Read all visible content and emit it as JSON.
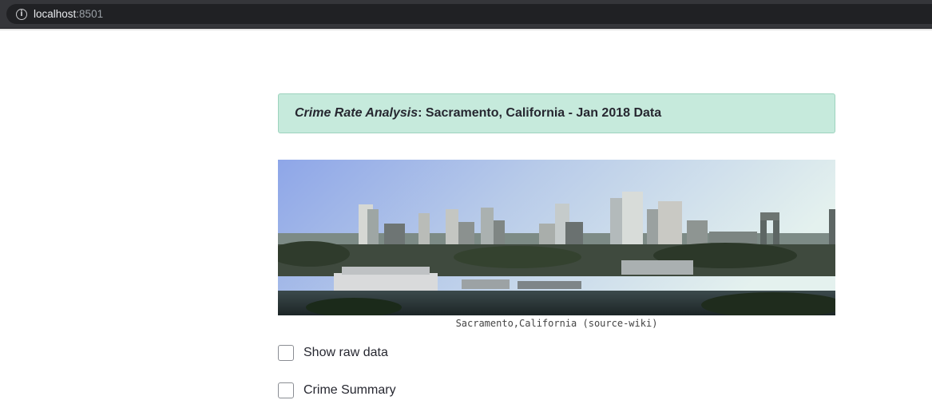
{
  "browser": {
    "url_host": "localhost",
    "url_port": ":8501",
    "info_icon": "info-icon"
  },
  "banner": {
    "title_emphasis": "Crime Rate Analysis",
    "title_rest": ": Sacramento, California - Jan 2018 Data",
    "background_color": "#c6eadc"
  },
  "image": {
    "caption": "Sacramento,California (source-wiki)"
  },
  "checkboxes": [
    {
      "label": "Show raw data",
      "checked": false
    },
    {
      "label": "Crime Summary",
      "checked": false
    }
  ]
}
